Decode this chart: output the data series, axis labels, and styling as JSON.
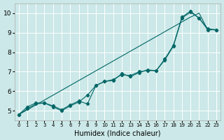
{
  "xlabel": "Humidex (Indice chaleur)",
  "bg_color": "#cce8e8",
  "grid_color": "#ffffff",
  "line_color": "#006666",
  "x": [
    0,
    1,
    2,
    3,
    4,
    5,
    6,
    7,
    8,
    9,
    10,
    11,
    12,
    13,
    14,
    15,
    16,
    17,
    18,
    19,
    20,
    21,
    22,
    23
  ],
  "y_jagged": [
    4.8,
    5.2,
    5.4,
    5.4,
    5.25,
    5.05,
    5.3,
    5.5,
    5.35,
    6.3,
    6.5,
    6.55,
    6.9,
    6.75,
    6.95,
    7.1,
    7.05,
    7.65,
    8.35,
    9.8,
    10.1,
    9.75,
    9.2,
    9.15
  ],
  "y_straight": [
    4.8,
    5.05,
    5.3,
    5.55,
    5.8,
    6.05,
    6.3,
    6.55,
    6.8,
    7.05,
    7.3,
    7.55,
    7.8,
    8.05,
    8.3,
    8.55,
    8.8,
    9.05,
    9.3,
    9.55,
    9.8,
    10.0,
    9.15,
    9.15
  ],
  "y_smooth": [
    4.8,
    5.1,
    5.35,
    5.4,
    5.2,
    5.0,
    5.25,
    5.45,
    5.8,
    6.3,
    6.5,
    6.6,
    6.85,
    6.8,
    7.0,
    7.05,
    7.05,
    7.6,
    8.3,
    9.75,
    10.05,
    9.75,
    9.15,
    9.15
  ],
  "ylim": [
    4.5,
    10.5
  ],
  "xlim": [
    -0.5,
    23.5
  ],
  "yticks": [
    5,
    6,
    7,
    8,
    9,
    10
  ],
  "xticks": [
    0,
    1,
    2,
    3,
    4,
    5,
    6,
    7,
    8,
    9,
    10,
    11,
    12,
    13,
    14,
    15,
    16,
    17,
    18,
    19,
    20,
    21,
    22,
    23
  ]
}
